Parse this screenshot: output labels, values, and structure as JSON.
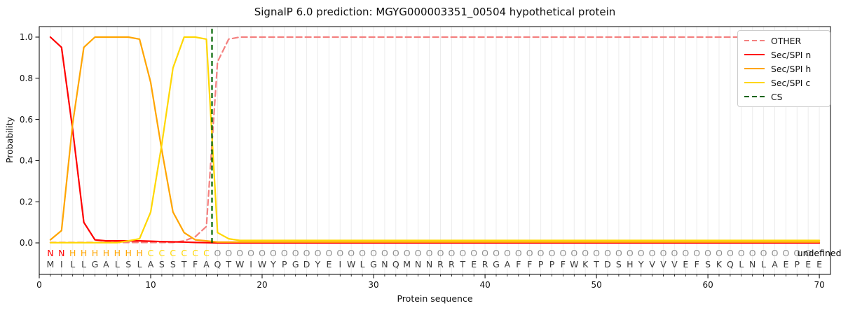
{
  "title": "SignalP 6.0 prediction: MGYG000003351_00504 hypothetical protein",
  "axes": {
    "xlabel": "Protein sequence",
    "ylabel": "Probability",
    "xticks": [
      0,
      10,
      20,
      30,
      40,
      50,
      60,
      70
    ],
    "yticks": [
      {
        "label": "0.0",
        "value": 0.0
      },
      {
        "label": "0.2",
        "value": 0.2
      },
      {
        "label": "0.4",
        "value": 0.4
      },
      {
        "label": "0.6",
        "value": 0.6
      },
      {
        "label": "0.8",
        "value": 0.8
      },
      {
        "label": "1.0",
        "value": 1.0
      }
    ],
    "xlim": [
      0,
      71
    ],
    "ylim": [
      0,
      1
    ],
    "grid": "vertical light gridline at every sequence position"
  },
  "legend": {
    "position": "upper right",
    "items": [
      {
        "label": "OTHER",
        "color": "#f4807f",
        "dashed": true
      },
      {
        "label": "Sec/SPI n",
        "color": "#ff0000",
        "dashed": false
      },
      {
        "label": "Sec/SPI h",
        "color": "#ffa500",
        "dashed": false
      },
      {
        "label": "Sec/SPI c",
        "color": "#ffd700",
        "dashed": false
      },
      {
        "label": "CS",
        "color": "#006400",
        "dashed": true
      }
    ]
  },
  "chart_data": {
    "type": "line",
    "x_range": [
      1,
      70
    ],
    "x_note": "x value of each point = array index + 1 (residue position)",
    "sequence": "MILLGALSLASSTFAQTWIWYPGDYEIWLGNQMNNRRTERGAFFPPFWKTDSHYVVVEFSKQLNLAEPEE",
    "region_annotation": "NNHHHHHHHCCCCCCOOOOOOOOOOOOOOOOOOOOOOOOOOOOOOOOOOOOOOOOOOOOOOOOOOOOOO",
    "region_colors": {
      "N": "#ff0000",
      "H": "#ffa500",
      "C": "#ffd700",
      "O": "#8f8f8f"
    },
    "sequence_color": "#3a3a3a",
    "cs_position": 15.5,
    "cs_color": "#006400",
    "series": [
      {
        "name": "OTHER",
        "color": "#f4807f",
        "dashed": true,
        "values": [
          0.002,
          0.002,
          0.002,
          0.002,
          0.002,
          0.002,
          0.002,
          0.002,
          0.002,
          0.002,
          0.002,
          0.002,
          0.01,
          0.03,
          0.08,
          0.88,
          0.99,
          1.0,
          1.0,
          1.0,
          1.0,
          1.0,
          1.0,
          1.0,
          1.0,
          1.0,
          1.0,
          1.0,
          1.0,
          1.0,
          1.0,
          1.0,
          1.0,
          1.0,
          1.0,
          1.0,
          1.0,
          1.0,
          1.0,
          1.0,
          1.0,
          1.0,
          1.0,
          1.0,
          1.0,
          1.0,
          1.0,
          1.0,
          1.0,
          1.0,
          1.0,
          1.0,
          1.0,
          1.0,
          1.0,
          1.0,
          1.0,
          1.0,
          1.0,
          1.0,
          1.0,
          1.0,
          1.0,
          1.0,
          1.0,
          1.0,
          1.0,
          1.0,
          1.0,
          1.0
        ]
      },
      {
        "name": "Sec/SPI n",
        "color": "#ff0000",
        "dashed": false,
        "values": [
          1.0,
          0.95,
          0.55,
          0.1,
          0.015,
          0.01,
          0.01,
          0.01,
          0.01,
          0.008,
          0.006,
          0.005,
          0.004,
          0.002,
          0.001,
          0,
          0,
          0,
          0,
          0,
          0,
          0,
          0,
          0,
          0,
          0,
          0,
          0,
          0,
          0,
          0,
          0,
          0,
          0,
          0,
          0,
          0,
          0,
          0,
          0,
          0,
          0,
          0,
          0,
          0,
          0,
          0,
          0,
          0,
          0,
          0,
          0,
          0,
          0,
          0,
          0,
          0,
          0,
          0,
          0,
          0,
          0,
          0,
          0,
          0,
          0,
          0,
          0,
          0,
          0
        ]
      },
      {
        "name": "Sec/SPI h",
        "color": "#ffa500",
        "dashed": false,
        "values": [
          0.015,
          0.06,
          0.58,
          0.95,
          1.0,
          1.0,
          1.0,
          1.0,
          0.99,
          0.78,
          0.45,
          0.15,
          0.05,
          0.015,
          0.01,
          0.004,
          0.004,
          0.004,
          0.004,
          0.004,
          0.004,
          0.004,
          0.004,
          0.004,
          0.004,
          0.004,
          0.004,
          0.004,
          0.004,
          0.004,
          0.004,
          0.004,
          0.004,
          0.004,
          0.004,
          0.004,
          0.004,
          0.004,
          0.004,
          0.004,
          0.004,
          0.004,
          0.004,
          0.004,
          0.004,
          0.004,
          0.004,
          0.004,
          0.004,
          0.004,
          0.004,
          0.004,
          0.004,
          0.004,
          0.004,
          0.004,
          0.004,
          0.004,
          0.004,
          0.004,
          0.004,
          0.004,
          0.004,
          0.004,
          0.004,
          0.004,
          0.004,
          0.004,
          0.004,
          0.004
        ]
      },
      {
        "name": "Sec/SPI c",
        "color": "#ffd700",
        "dashed": false,
        "values": [
          0.001,
          0.001,
          0.001,
          0.001,
          0.001,
          0.001,
          0.001,
          0.01,
          0.02,
          0.15,
          0.48,
          0.85,
          1.0,
          1.0,
          0.99,
          0.05,
          0.02,
          0.012,
          0.012,
          0.012,
          0.012,
          0.012,
          0.012,
          0.012,
          0.012,
          0.012,
          0.012,
          0.012,
          0.012,
          0.012,
          0.012,
          0.012,
          0.012,
          0.012,
          0.012,
          0.012,
          0.012,
          0.012,
          0.012,
          0.012,
          0.012,
          0.012,
          0.012,
          0.012,
          0.012,
          0.012,
          0.012,
          0.012,
          0.012,
          0.012,
          0.012,
          0.012,
          0.012,
          0.012,
          0.012,
          0.012,
          0.012,
          0.012,
          0.012,
          0.012,
          0.012,
          0.012,
          0.012,
          0.012,
          0.012,
          0.012,
          0.012,
          0.012,
          0.012,
          0.012
        ]
      }
    ]
  }
}
